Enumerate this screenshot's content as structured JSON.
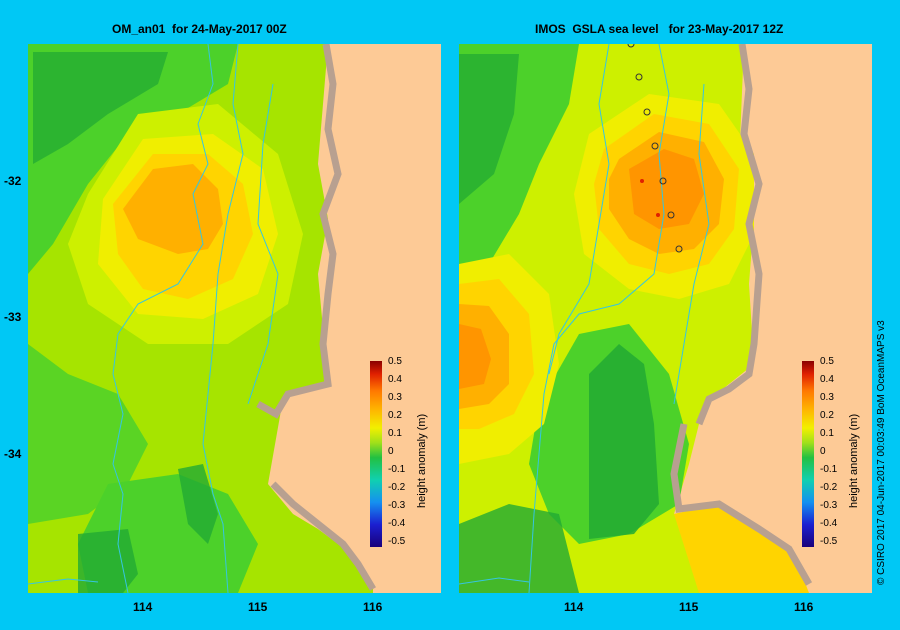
{
  "left_panel": {
    "title": "OM_an01  for 24-May-2017 00Z"
  },
  "right_panel": {
    "title": "IMOS  GSLA sea level   for 23-May-2017 12Z"
  },
  "axes": {
    "lat_ticks": [
      "-32",
      "-33",
      "-34"
    ],
    "lon_ticks": [
      "114",
      "115",
      "116"
    ]
  },
  "colorbar": {
    "title": "height anomaly (m)",
    "labels": [
      "0.5",
      "0.4",
      "0.3",
      "0.2",
      "0.1",
      "0",
      "-0.1",
      "-0.2",
      "-0.3",
      "-0.4",
      "-0.5"
    ]
  },
  "credit": "© CSIRO 2017   04-Jun-2017 00:03:49 BoM OceanMAPS v3",
  "colors": {
    "background": "#00c8f5",
    "land": "#fdca96",
    "coast": "#b8a090",
    "green_dark": "#22aa33",
    "green": "#4cd12a",
    "lime": "#a6e400",
    "yellow_green": "#cdf000",
    "yellow": "#f0ee00",
    "orange_light": "#ffd400",
    "orange": "#ffb000",
    "orange_dark": "#ff9500",
    "isobath": "#35c6e0"
  }
}
